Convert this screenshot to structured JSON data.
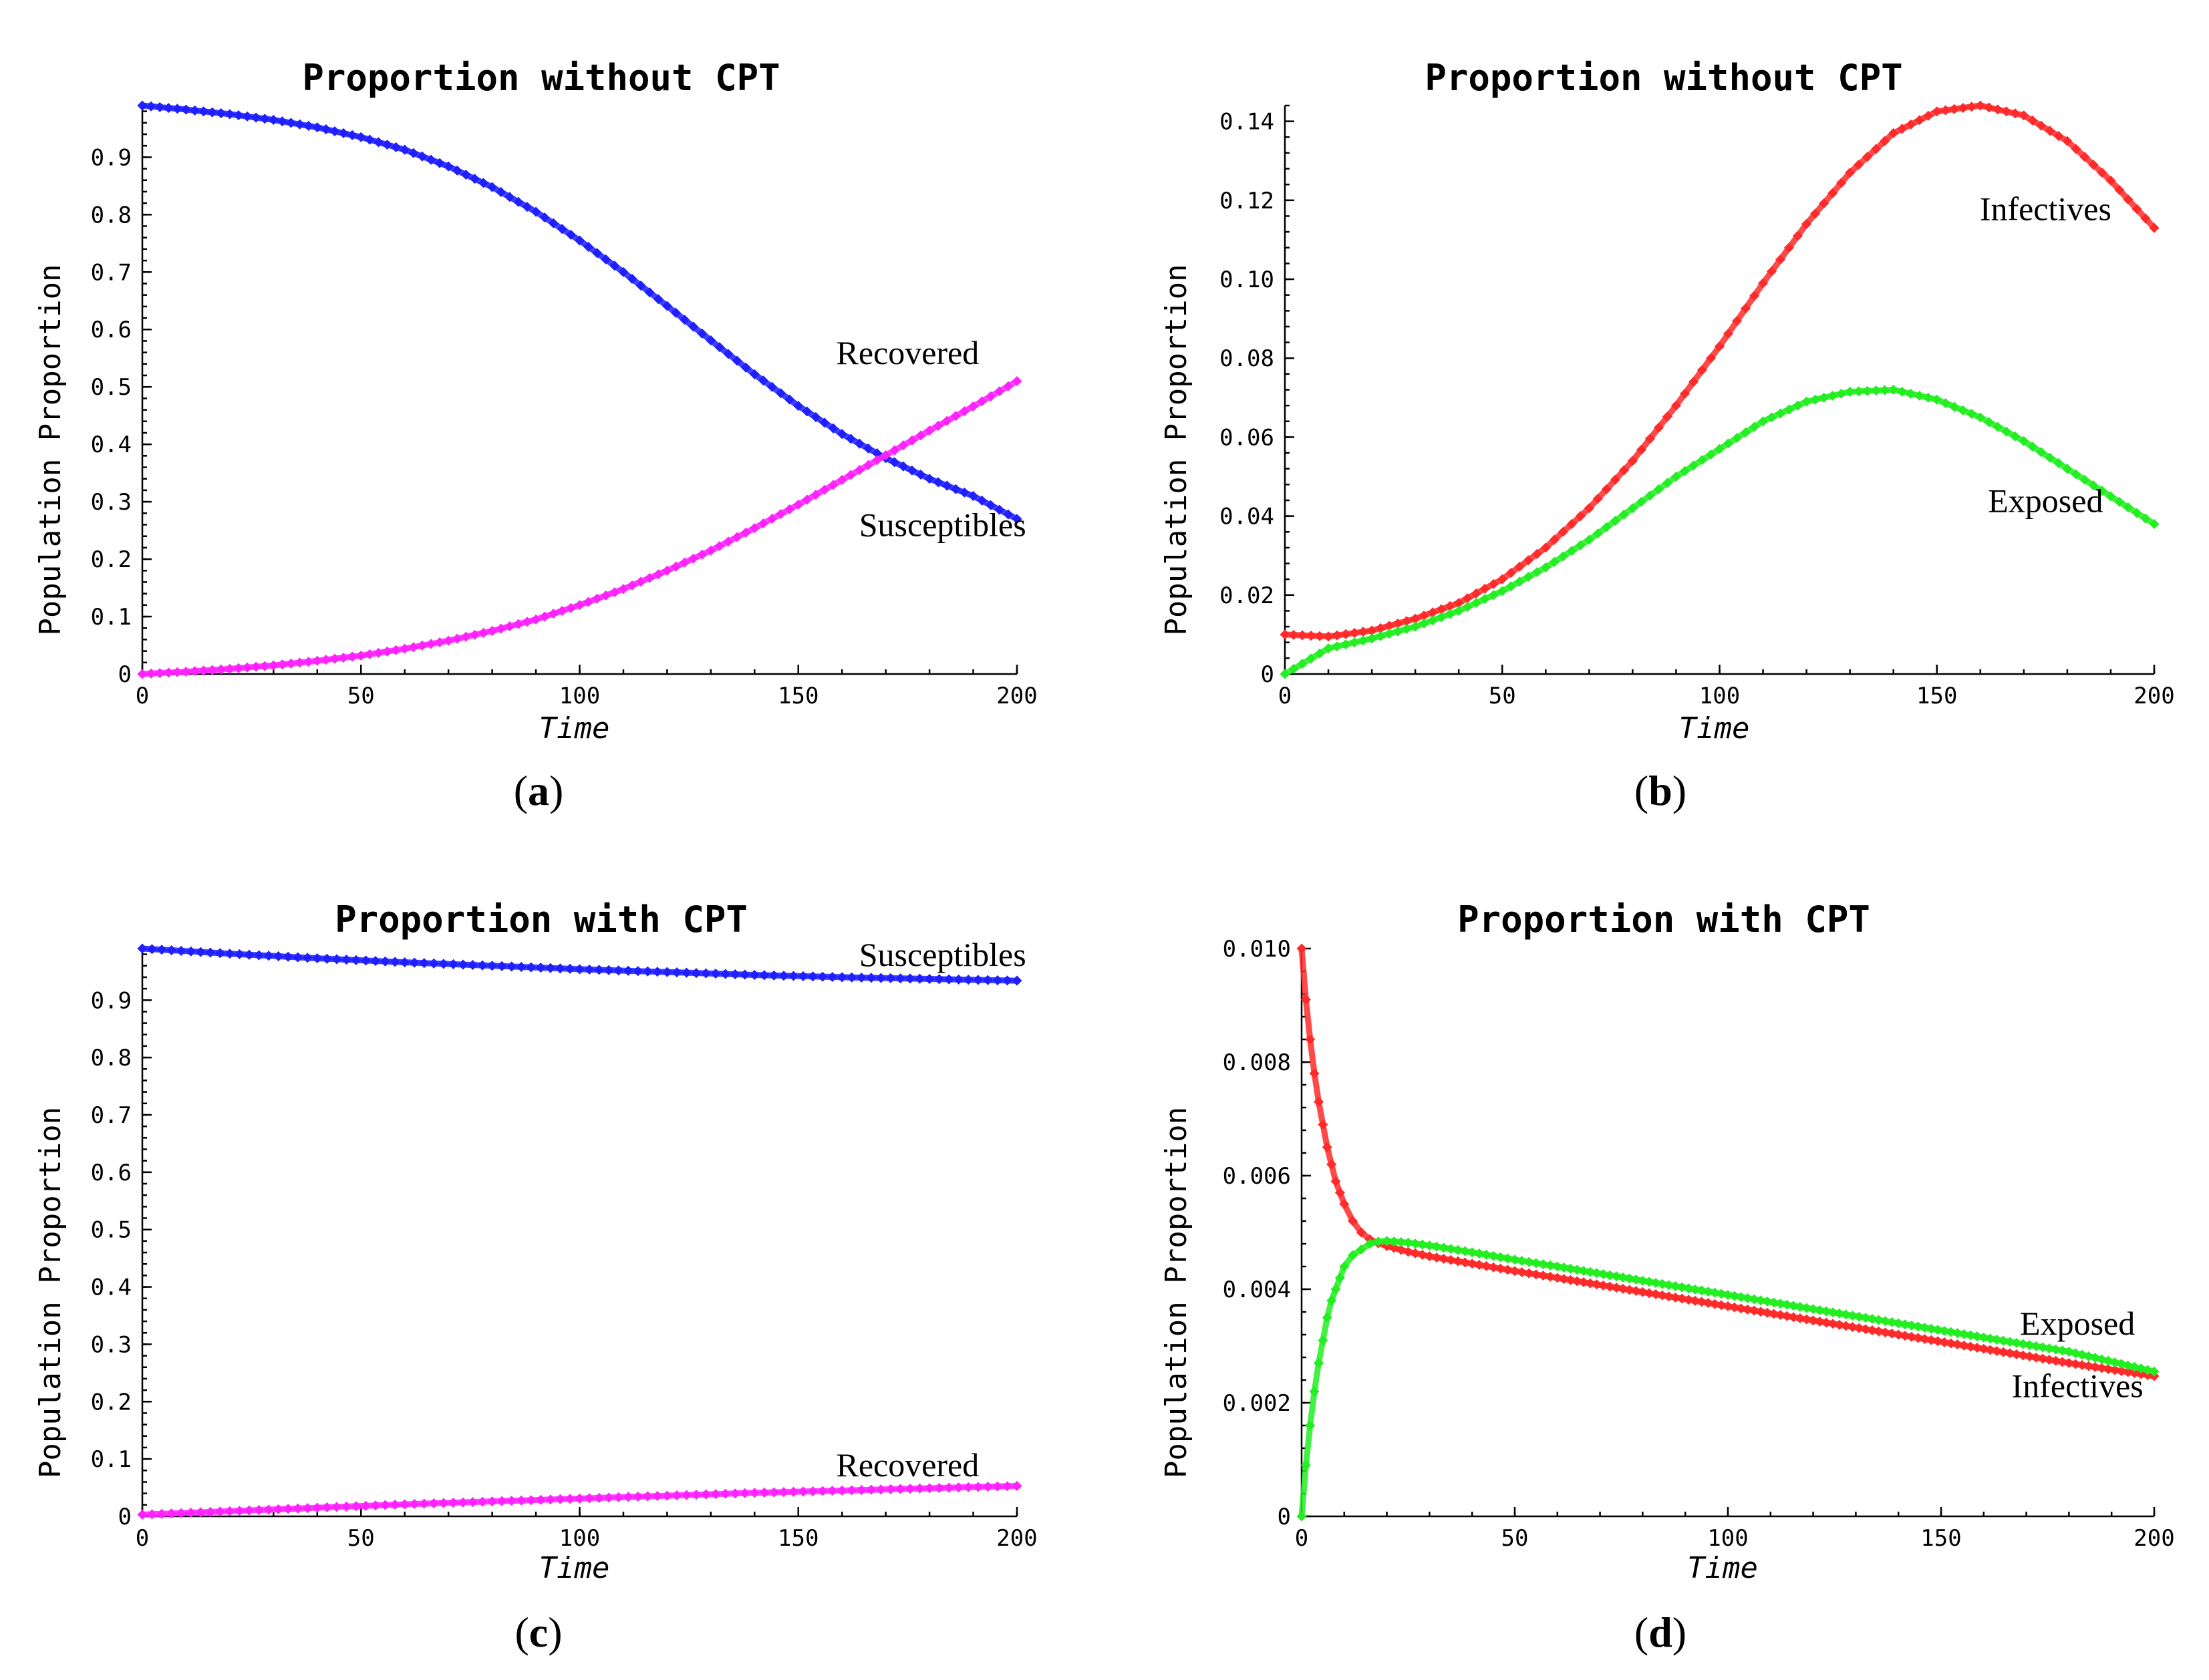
{
  "chart_data": [
    {
      "type": "line",
      "caption": "a",
      "title": "Proportion without CPT",
      "xlabel": "Time",
      "ylabel": "Population Proportion",
      "xlim": [
        0,
        200
      ],
      "ylim": [
        0,
        0.99
      ],
      "xticks": [
        0,
        50,
        100,
        150,
        200
      ],
      "xtick_labels": [
        "0",
        "50",
        "100",
        "150",
        "200"
      ],
      "yticks": [
        0,
        0.1,
        0.2,
        0.3,
        0.4,
        0.5,
        0.6,
        0.7,
        0.8,
        0.9
      ],
      "ytick_labels": [
        "0",
        "0.1",
        "0.2",
        "0.3",
        "0.4",
        "0.5",
        "0.6",
        "0.7",
        "0.8",
        "0.9"
      ],
      "grid": false,
      "x": [
        0,
        10,
        20,
        30,
        40,
        50,
        60,
        70,
        80,
        90,
        100,
        110,
        120,
        130,
        140,
        150,
        160,
        170,
        180,
        190,
        200
      ],
      "series": [
        {
          "name": "Susceptibles",
          "color": "#1f1fff",
          "marker": "diamond",
          "values": [
            0.99,
            0.983,
            0.975,
            0.965,
            0.952,
            0.935,
            0.913,
            0.884,
            0.848,
            0.805,
            0.755,
            0.7,
            0.641,
            0.581,
            0.522,
            0.467,
            0.418,
            0.376,
            0.34,
            0.31,
            0.27
          ]
        },
        {
          "name": "Recovered",
          "color": "#ff22ff",
          "marker": "diamond",
          "values": [
            0.0,
            0.004,
            0.009,
            0.015,
            0.023,
            0.032,
            0.044,
            0.058,
            0.075,
            0.095,
            0.12,
            0.148,
            0.18,
            0.215,
            0.254,
            0.295,
            0.338,
            0.381,
            0.424,
            0.466,
            0.51
          ]
        }
      ],
      "annotations": [
        {
          "text": "Recovered",
          "series": "Recovered",
          "x": 175,
          "y": 0.54
        },
        {
          "text": "Susceptibles",
          "series": "Susceptibles",
          "x": 183,
          "y": 0.24
        }
      ]
    },
    {
      "type": "line",
      "caption": "b",
      "title": "Proportion without CPT",
      "xlabel": "Time",
      "ylabel": "Population Proportion",
      "xlim": [
        0,
        200
      ],
      "ylim": [
        0,
        0.144
      ],
      "xticks": [
        0,
        50,
        100,
        150,
        200
      ],
      "xtick_labels": [
        "0",
        "50",
        "100",
        "150",
        "200"
      ],
      "yticks": [
        0,
        0.02,
        0.04,
        0.06,
        0.08,
        0.1,
        0.12,
        0.14
      ],
      "ytick_labels": [
        "0",
        "0.02",
        "0.04",
        "0.06",
        "0.08",
        "0.10",
        "0.12",
        "0.14"
      ],
      "grid": false,
      "x": [
        0,
        10,
        20,
        30,
        40,
        50,
        60,
        70,
        80,
        90,
        100,
        110,
        120,
        130,
        140,
        150,
        160,
        170,
        180,
        190,
        200
      ],
      "series": [
        {
          "name": "Infectives",
          "color": "#ff2a2a",
          "marker": "diamond",
          "values": [
            0.01,
            0.0095,
            0.011,
            0.014,
            0.018,
            0.024,
            0.032,
            0.042,
            0.054,
            0.068,
            0.083,
            0.099,
            0.114,
            0.127,
            0.137,
            0.1425,
            0.144,
            0.1415,
            0.135,
            0.125,
            0.113
          ]
        },
        {
          "name": "Exposed",
          "color": "#22ee22",
          "marker": "diamond",
          "values": [
            0.0,
            0.0065,
            0.009,
            0.012,
            0.016,
            0.021,
            0.027,
            0.034,
            0.042,
            0.05,
            0.057,
            0.064,
            0.069,
            0.0715,
            0.072,
            0.0695,
            0.065,
            0.059,
            0.052,
            0.045,
            0.038
          ]
        }
      ],
      "annotations": [
        {
          "text": "Infectives",
          "series": "Infectives",
          "x": 175,
          "y": 0.115
        },
        {
          "text": "Exposed",
          "series": "Exposed",
          "x": 175,
          "y": 0.041
        }
      ]
    },
    {
      "type": "line",
      "caption": "c",
      "title": "Proportion with CPT",
      "xlabel": "Time",
      "ylabel": "Population Proportion",
      "xlim": [
        0,
        200
      ],
      "ylim": [
        0,
        0.99
      ],
      "xticks": [
        0,
        50,
        100,
        150,
        200
      ],
      "xtick_labels": [
        "0",
        "50",
        "100",
        "150",
        "200"
      ],
      "yticks": [
        0,
        0.1,
        0.2,
        0.3,
        0.4,
        0.5,
        0.6,
        0.7,
        0.8,
        0.9
      ],
      "ytick_labels": [
        "0",
        "0.1",
        "0.2",
        "0.3",
        "0.4",
        "0.5",
        "0.6",
        "0.7",
        "0.8",
        "0.9"
      ],
      "grid": false,
      "x": [
        0,
        20,
        40,
        60,
        80,
        100,
        120,
        140,
        160,
        180,
        200
      ],
      "series": [
        {
          "name": "Susceptibles",
          "color": "#1f1fff",
          "marker": "diamond",
          "values": [
            0.99,
            0.981,
            0.973,
            0.966,
            0.96,
            0.954,
            0.949,
            0.944,
            0.94,
            0.937,
            0.934
          ]
        },
        {
          "name": "Recovered",
          "color": "#ff22ff",
          "marker": "diamond",
          "values": [
            0.003,
            0.009,
            0.015,
            0.021,
            0.026,
            0.031,
            0.036,
            0.041,
            0.045,
            0.049,
            0.053
          ]
        }
      ],
      "annotations": [
        {
          "text": "Susceptibles",
          "series": "Susceptibles",
          "x": 183,
          "y": 0.96
        },
        {
          "text": "Recovered",
          "series": "Recovered",
          "x": 175,
          "y": 0.07
        }
      ]
    },
    {
      "type": "line",
      "caption": "d",
      "title": "Proportion with CPT",
      "xlabel": "Time",
      "ylabel": "Population Proportion",
      "xlim": [
        0,
        200
      ],
      "ylim": [
        0,
        0.01
      ],
      "xticks": [
        0,
        50,
        100,
        150,
        200
      ],
      "xtick_labels": [
        "0",
        "50",
        "100",
        "150",
        "200"
      ],
      "yticks": [
        0,
        0.002,
        0.004,
        0.006,
        0.008,
        0.01
      ],
      "ytick_labels": [
        "0",
        "0.002",
        "0.004",
        "0.006",
        "0.008",
        "0.010"
      ],
      "grid": false,
      "x": [
        0,
        1,
        2,
        3,
        4,
        5,
        6,
        7,
        8,
        9,
        10,
        12,
        14,
        16,
        18,
        20,
        25,
        30,
        40,
        50,
        60,
        80,
        100,
        120,
        140,
        160,
        180,
        200
      ],
      "series": [
        {
          "name": "Infectives",
          "color": "#ff2a2a",
          "marker": "diamond",
          "values": [
            0.01,
            0.0091,
            0.0084,
            0.0078,
            0.0073,
            0.0069,
            0.0065,
            0.0062,
            0.0059,
            0.0057,
            0.0055,
            0.0052,
            0.005,
            0.00488,
            0.00481,
            0.00476,
            0.00466,
            0.00458,
            0.00445,
            0.00432,
            0.0042,
            0.00395,
            0.0037,
            0.00345,
            0.0032,
            0.00295,
            0.0027,
            0.00247
          ]
        },
        {
          "name": "Exposed",
          "color": "#22ee22",
          "marker": "diamond",
          "values": [
            0.0,
            0.0009,
            0.0016,
            0.0022,
            0.0027,
            0.0031,
            0.0035,
            0.0038,
            0.004,
            0.0042,
            0.0044,
            0.0046,
            0.0047,
            0.0048,
            0.00484,
            0.00485,
            0.00482,
            0.00477,
            0.00465,
            0.00452,
            0.0044,
            0.00415,
            0.0039,
            0.00365,
            0.0034,
            0.00315,
            0.0029,
            0.00255
          ]
        }
      ],
      "annotations": [
        {
          "text": "Exposed",
          "series": "Exposed",
          "x": 182,
          "y": 0.0032
        },
        {
          "text": "Infectives",
          "series": "Infectives",
          "x": 182,
          "y": 0.0021
        }
      ]
    }
  ]
}
